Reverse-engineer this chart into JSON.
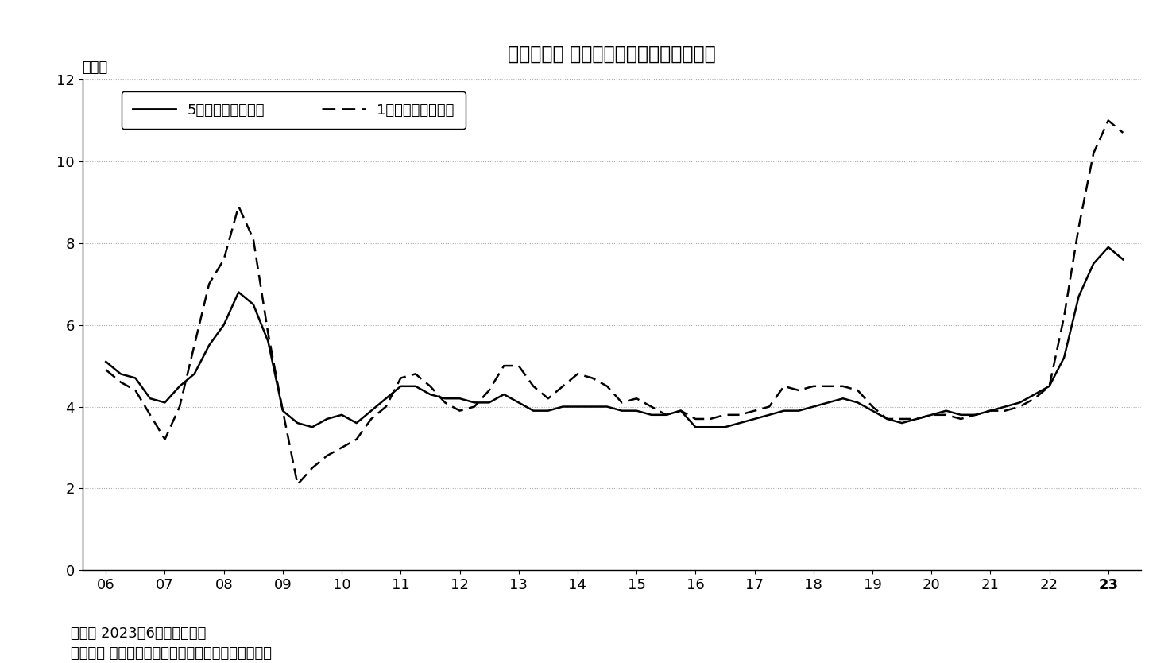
{
  "title": "［図表２］ 家計のインフレ予想（平均）",
  "ylabel": "（％）",
  "note1": "（注） 2023年6月時点まで。",
  "note2": "（資料） 日銀「生活意識に関するアンケート調査」",
  "legend_solid": "5年後の物価の予想",
  "legend_dashed": "1年後の物価の予想",
  "ylim": [
    0,
    12
  ],
  "yticks": [
    0,
    2,
    4,
    6,
    8,
    10,
    12
  ],
  "background_color": "#ffffff",
  "line_color": "#000000",
  "x_labels": [
    "06",
    "07",
    "08",
    "09",
    "10",
    "11",
    "12",
    "13",
    "14",
    "15",
    "16",
    "17",
    "18",
    "19",
    "20",
    "21",
    "22",
    "23"
  ],
  "solid_x": [
    2006.0,
    2006.25,
    2006.5,
    2006.75,
    2007.0,
    2007.25,
    2007.5,
    2007.75,
    2008.0,
    2008.25,
    2008.5,
    2008.75,
    2009.0,
    2009.25,
    2009.5,
    2009.75,
    2010.0,
    2010.25,
    2010.5,
    2010.75,
    2011.0,
    2011.25,
    2011.5,
    2011.75,
    2012.0,
    2012.25,
    2012.5,
    2012.75,
    2013.0,
    2013.25,
    2013.5,
    2013.75,
    2014.0,
    2014.25,
    2014.5,
    2014.75,
    2015.0,
    2015.25,
    2015.5,
    2015.75,
    2016.0,
    2016.25,
    2016.5,
    2016.75,
    2017.0,
    2017.25,
    2017.5,
    2017.75,
    2018.0,
    2018.25,
    2018.5,
    2018.75,
    2019.0,
    2019.25,
    2019.5,
    2019.75,
    2020.0,
    2020.25,
    2020.5,
    2020.75,
    2021.0,
    2021.25,
    2021.5,
    2021.75,
    2022.0,
    2022.25,
    2022.5,
    2022.75,
    2023.0,
    2023.25
  ],
  "solid_y": [
    5.1,
    4.8,
    4.7,
    4.2,
    4.1,
    4.5,
    4.8,
    5.5,
    6.0,
    6.8,
    6.5,
    5.6,
    3.9,
    3.6,
    3.5,
    3.7,
    3.8,
    3.6,
    3.9,
    4.2,
    4.5,
    4.5,
    4.3,
    4.2,
    4.2,
    4.1,
    4.1,
    4.3,
    4.1,
    3.9,
    3.9,
    4.0,
    4.0,
    4.0,
    4.0,
    3.9,
    3.9,
    3.8,
    3.8,
    3.9,
    3.5,
    3.5,
    3.5,
    3.6,
    3.7,
    3.8,
    3.9,
    3.9,
    4.0,
    4.1,
    4.2,
    4.1,
    3.9,
    3.7,
    3.6,
    3.7,
    3.8,
    3.9,
    3.8,
    3.8,
    3.9,
    4.0,
    4.1,
    4.3,
    4.5,
    5.2,
    6.7,
    7.5,
    7.9,
    7.6
  ],
  "dashed_x": [
    2006.0,
    2006.25,
    2006.5,
    2006.75,
    2007.0,
    2007.25,
    2007.5,
    2007.75,
    2008.0,
    2008.25,
    2008.5,
    2008.75,
    2009.0,
    2009.25,
    2009.5,
    2009.75,
    2010.0,
    2010.25,
    2010.5,
    2010.75,
    2011.0,
    2011.25,
    2011.5,
    2011.75,
    2012.0,
    2012.25,
    2012.5,
    2012.75,
    2013.0,
    2013.25,
    2013.5,
    2013.75,
    2014.0,
    2014.25,
    2014.5,
    2014.75,
    2015.0,
    2015.25,
    2015.5,
    2015.75,
    2016.0,
    2016.25,
    2016.5,
    2016.75,
    2017.0,
    2017.25,
    2017.5,
    2017.75,
    2018.0,
    2018.25,
    2018.5,
    2018.75,
    2019.0,
    2019.25,
    2019.5,
    2019.75,
    2020.0,
    2020.25,
    2020.5,
    2020.75,
    2021.0,
    2021.25,
    2021.5,
    2021.75,
    2022.0,
    2022.25,
    2022.5,
    2022.75,
    2023.0,
    2023.25
  ],
  "dashed_y": [
    4.9,
    4.6,
    4.4,
    3.8,
    3.2,
    4.0,
    5.5,
    7.0,
    7.6,
    8.9,
    8.1,
    5.8,
    3.9,
    2.1,
    2.5,
    2.8,
    3.0,
    3.2,
    3.7,
    4.0,
    4.7,
    4.8,
    4.5,
    4.1,
    3.9,
    4.0,
    4.4,
    5.0,
    5.0,
    4.5,
    4.2,
    4.5,
    4.8,
    4.7,
    4.5,
    4.1,
    4.2,
    4.0,
    3.8,
    3.9,
    3.7,
    3.7,
    3.8,
    3.8,
    3.9,
    4.0,
    4.5,
    4.4,
    4.5,
    4.5,
    4.5,
    4.4,
    4.0,
    3.7,
    3.7,
    3.7,
    3.8,
    3.8,
    3.7,
    3.8,
    3.9,
    3.9,
    4.0,
    4.2,
    4.5,
    6.2,
    8.4,
    10.2,
    11.0,
    10.7
  ]
}
